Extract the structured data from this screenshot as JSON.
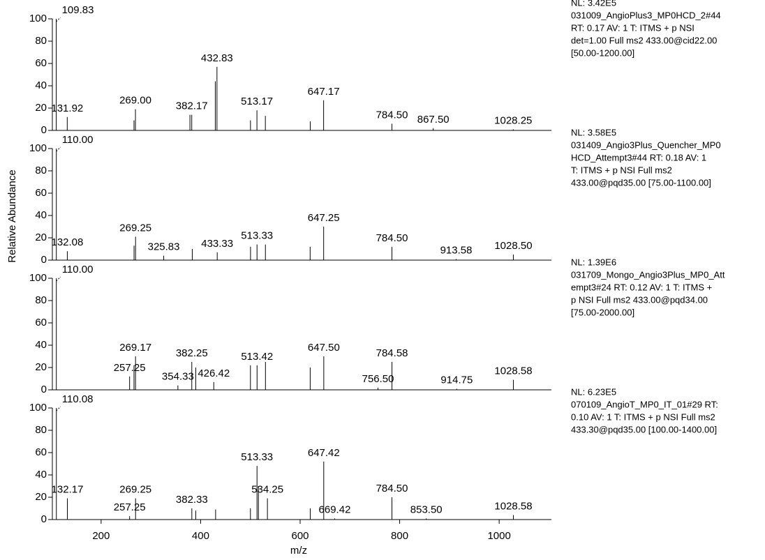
{
  "shared": {
    "xlabel": "m/z",
    "ylabel": "Relative Abundance"
  },
  "chart_data": [
    {
      "type": "stem",
      "xlim": [
        102,
        1105
      ],
      "ylim": [
        0,
        100
      ],
      "yticks": [
        0,
        20,
        40,
        60,
        80,
        100
      ],
      "color": "#000000",
      "notes": [
        "NL: 3.42E5",
        "031009_AngioPlus3_MP0HCD_2#44",
        "RT: 0.17  AV: 1 T: ITMS + p NSI",
        "det=1.00 Full ms2 433.00@cid22.00",
        "[50.00-1200.00]"
      ],
      "x": [
        109.83,
        131.92,
        269.0,
        382.17,
        432.83,
        513.17,
        647.17,
        784.5,
        867.5,
        1028.25,
        378.5,
        429.5,
        500.2,
        530.1,
        620.3,
        266.1
      ],
      "values": [
        100,
        12,
        19,
        14,
        57,
        18,
        27,
        6,
        2,
        1,
        14,
        44,
        9,
        13,
        8,
        9
      ],
      "peak_labels": [
        "109.83",
        "131.92",
        "269.00",
        "382.17",
        "432.83",
        "513.17",
        "647.17",
        "784.50",
        "867.50",
        "1028.25",
        null,
        null,
        null,
        null,
        null,
        null
      ]
    },
    {
      "type": "stem",
      "xlim": [
        102,
        1105
      ],
      "ylim": [
        0,
        100
      ],
      "yticks": [
        0,
        20,
        40,
        60,
        80,
        100
      ],
      "color": "#000000",
      "notes": [
        "NL: 3.58E5",
        "031409_Angio3Plus_Quencher_MP0",
        "HCD_Attempt3#44  RT: 0.18  AV: 1",
        "T: ITMS + p NSI Full ms2",
        "433.00@pqd35.00 [75.00-1100.00]"
      ],
      "x": [
        110.0,
        132.08,
        269.25,
        325.83,
        433.33,
        513.33,
        647.25,
        784.5,
        913.58,
        1028.5,
        383.2,
        500.3,
        530.2,
        620.1,
        266.2
      ],
      "values": [
        100,
        8,
        21,
        4,
        7,
        14,
        30,
        12,
        1,
        5,
        10,
        12,
        14,
        12,
        13
      ],
      "peak_labels": [
        "110.00",
        "132.08",
        "269.25",
        "325.83",
        "433.33",
        "513.33",
        "647.25",
        "784.50",
        "913.58",
        "1028.50",
        null,
        null,
        null,
        null,
        null
      ]
    },
    {
      "type": "stem",
      "xlim": [
        102,
        1105
      ],
      "ylim": [
        0,
        100
      ],
      "yticks": [
        0,
        20,
        40,
        60,
        80,
        100
      ],
      "color": "#000000",
      "notes": [
        "NL: 1.39E6",
        "031709_Mongo_Angio3Plus_MP0_Att",
        "empt3#24  RT: 0.12  AV: 1 T: ITMS +",
        "p NSI Full ms2 433.00@pqd34.00",
        "[75.00-2000.00]"
      ],
      "x": [
        110.0,
        257.25,
        269.17,
        354.33,
        382.25,
        426.42,
        513.42,
        647.5,
        756.5,
        784.58,
        914.75,
        1028.58,
        530.3,
        500.1,
        390.2,
        620.2,
        266.1
      ],
      "values": [
        100,
        12,
        30,
        4,
        25,
        7,
        22,
        30,
        2,
        25,
        1,
        9,
        25,
        22,
        20,
        20,
        22
      ],
      "peak_labels": [
        "110.00",
        "257.25",
        "269.17",
        "354.33",
        "382.25",
        "426.42",
        "513.42",
        "647.50",
        "756.50",
        "784.58",
        "914.75",
        "1028.58",
        null,
        null,
        null,
        null,
        null
      ]
    },
    {
      "type": "stem",
      "xlim": [
        102,
        1105
      ],
      "ylim": [
        0,
        100
      ],
      "yticks": [
        0,
        20,
        40,
        60,
        80,
        100
      ],
      "xticks": [
        200,
        400,
        600,
        800,
        1000
      ],
      "color": "#000000",
      "notes": [
        "NL: 6.23E5",
        "070109_AngioT_MP0_IT_01#29  RT:",
        "0.10  AV: 1 T: ITMS + p NSI Full ms2",
        "433.30@pqd35.00 [100.00-1400.00]"
      ],
      "x": [
        110.08,
        132.17,
        257.25,
        269.25,
        382.33,
        513.33,
        534.25,
        647.42,
        669.42,
        784.5,
        853.5,
        1028.58,
        516.2,
        500.1,
        620.3,
        390.2,
        430.1
      ],
      "values": [
        100,
        19,
        3,
        19,
        10,
        48,
        19,
        52,
        1,
        20,
        1,
        4,
        30,
        10,
        10,
        8,
        9
      ],
      "peak_labels": [
        "110.08",
        "132.17",
        "257.25",
        "269.25",
        "382.33",
        "513.33",
        "534.25",
        "647.42",
        "669.42",
        "784.50",
        "853.50",
        "1028.58",
        null,
        null,
        null,
        null,
        null
      ]
    }
  ]
}
